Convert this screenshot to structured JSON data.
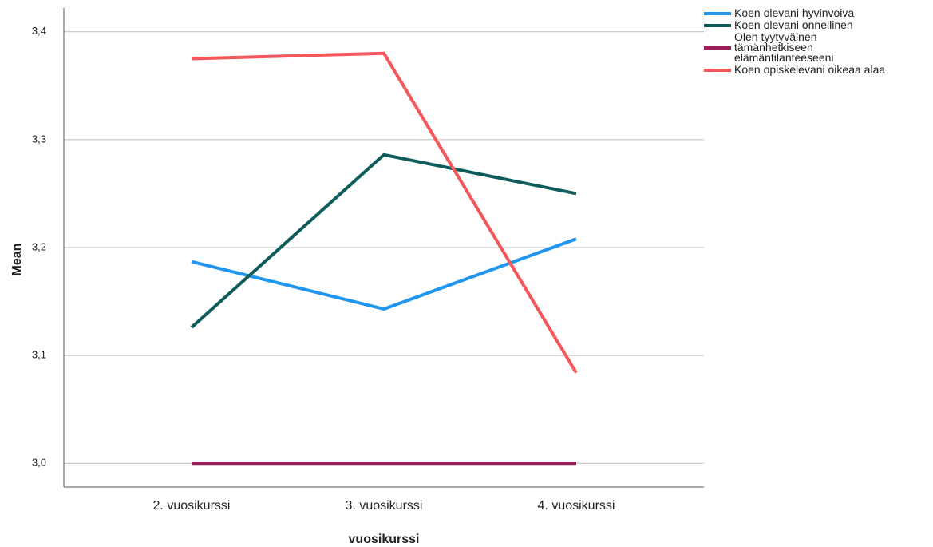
{
  "chart_data": {
    "type": "line",
    "x_label": "vuosikurssi",
    "y_label": "Mean",
    "categories": [
      "2. vuosikurssi",
      "3. vuosikurssi",
      "4. vuosikurssi"
    ],
    "series": [
      {
        "name": "Koen olevani hyvinvoiva",
        "color": "#2196ee",
        "values": [
          3.187,
          3.143,
          3.208
        ]
      },
      {
        "name": "Koen olevani onnellinen",
        "color": "#0d5c5a",
        "values": [
          3.126,
          3.286,
          3.25
        ]
      },
      {
        "name": "Olen tyytyväinen tämänhetkiseen elämäntilanteeseeni",
        "color": "#9b1d5a",
        "values": [
          3.0,
          3.0,
          3.0
        ]
      },
      {
        "name": "Koen opiskelevani oikeaa alaa",
        "color": "#f4565a",
        "values": [
          3.375,
          3.38,
          3.084
        ]
      }
    ],
    "ylim": [
      2.978,
      3.422
    ],
    "yticks": [
      {
        "value": 3.0,
        "label": "3,0"
      },
      {
        "value": 3.1,
        "label": "3,1"
      },
      {
        "value": 3.2,
        "label": "3,2"
      },
      {
        "value": 3.3,
        "label": "3,3"
      },
      {
        "value": 3.4,
        "label": "3,4"
      }
    ],
    "grid": true,
    "legend": "right"
  }
}
